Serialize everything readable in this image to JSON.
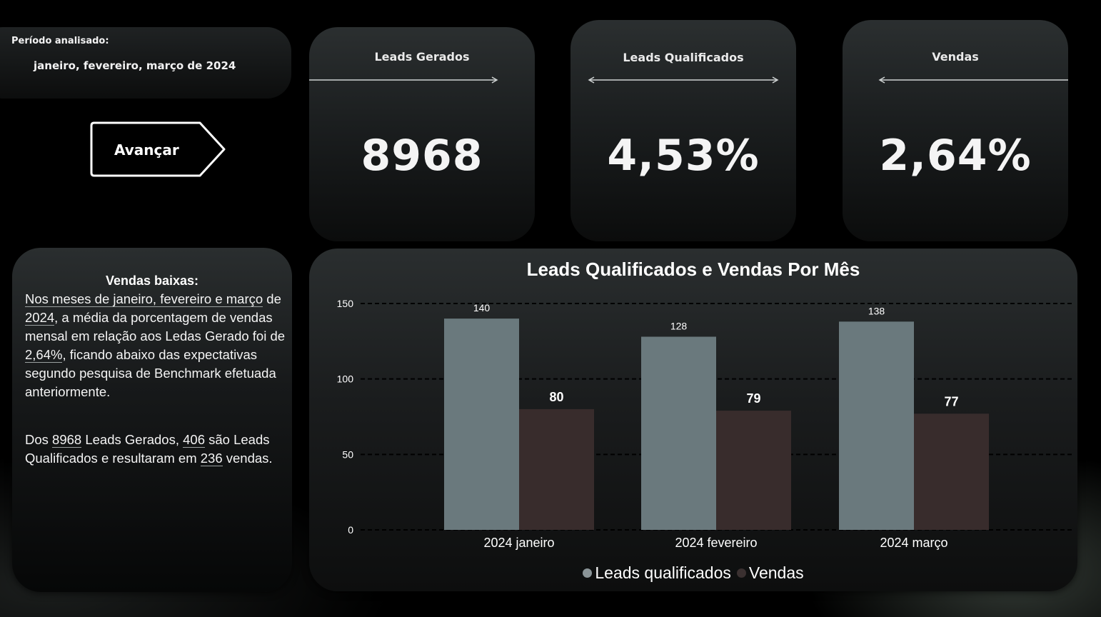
{
  "period": {
    "label": "Período analisado:",
    "value": "janeiro, fevereiro, março de 2024"
  },
  "nav": {
    "next_label": "Avançar"
  },
  "kpis": [
    {
      "title": "Leads Gerados",
      "value": "8968"
    },
    {
      "title": "Leads Qualificados",
      "value": "4,53%"
    },
    {
      "title": "Vendas",
      "value": "2,64%"
    }
  ],
  "summary": {
    "heading": "Vendas baixas:",
    "p1": {
      "t1": "Nos meses de janeiro, fevereiro e março",
      "t2": " de ",
      "t3": "2024",
      "t4": ", a média da porcentagem de vendas mensal em relação aos Ledas Gerado foi de ",
      "t5": "2,64%",
      "t6": ", ficando abaixo das expectativas segundo pesquisa de Benchmark efetuada anteriormente."
    },
    "p2": {
      "t1": "Dos ",
      "t2": "8968",
      "t3": " Leads Gerados, ",
      "t4": "406",
      "t5": " são Leads Qualificados e resultaram em ",
      "t6": "236",
      "t7": " vendas."
    }
  },
  "chart_data": {
    "type": "bar",
    "title": "Leads Qualificados e Vendas Por Mês",
    "categories": [
      "2024 janeiro",
      "2024 fevereiro",
      "2024 março"
    ],
    "series": [
      {
        "name": "Leads qualificados",
        "values": [
          140,
          128,
          138
        ],
        "color": "#6a797d"
      },
      {
        "name": "Vendas",
        "values": [
          80,
          79,
          77
        ],
        "color": "#382c2c"
      }
    ],
    "ylim": [
      0,
      150
    ],
    "yticks": [
      0,
      50,
      100,
      150
    ],
    "grid": true,
    "legend": "bottom"
  }
}
